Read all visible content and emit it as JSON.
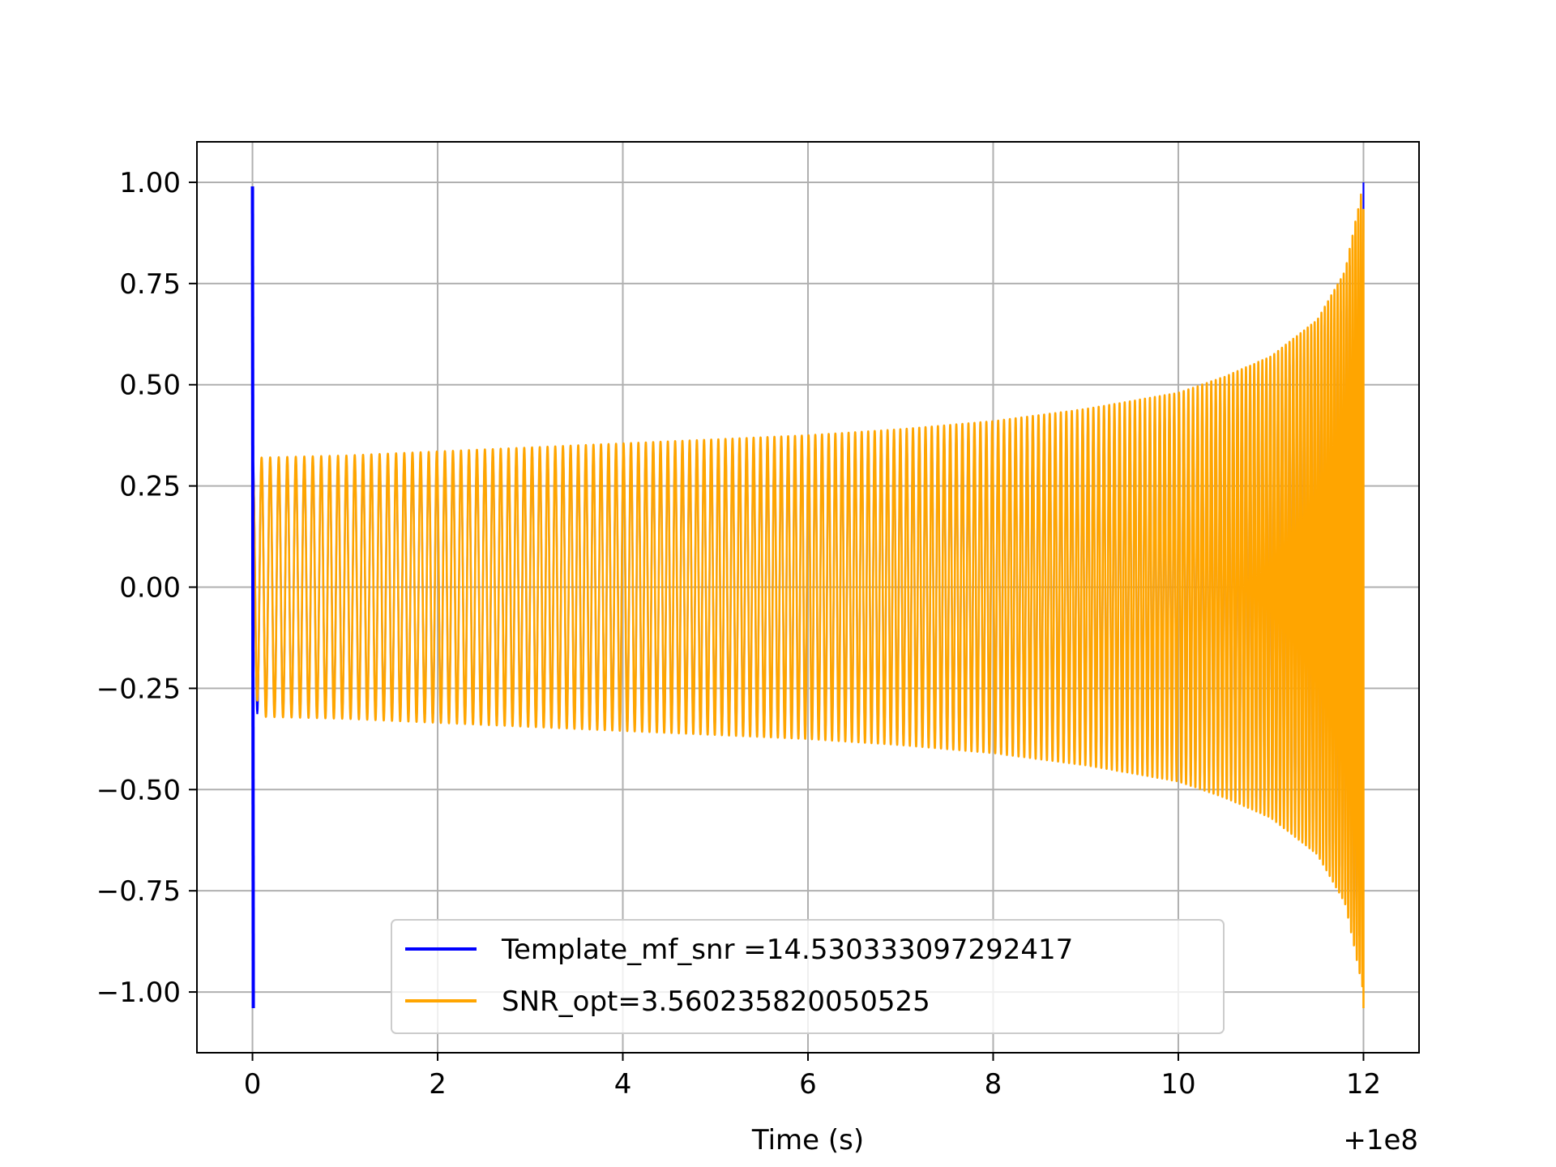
{
  "chart_data": {
    "type": "line",
    "title": "",
    "xlabel": "Time (s)",
    "ylabel": "",
    "x_offset_label": "+1e8",
    "xlim": [
      -0.6,
      12.6
    ],
    "ylim": [
      -1.15,
      1.1
    ],
    "grid": true,
    "legend_position": "lower center",
    "x_ticks": [
      0,
      2,
      4,
      6,
      8,
      10,
      12
    ],
    "x_tick_labels": [
      "0",
      "2",
      "4",
      "6",
      "8",
      "10",
      "12"
    ],
    "y_ticks": [
      1.0,
      0.75,
      0.5,
      0.25,
      0.0,
      -0.25,
      -0.5,
      -0.75,
      -1.0
    ],
    "y_tick_labels": [
      "1.00",
      "0.75",
      "0.50",
      "0.25",
      "0.00",
      "−0.25",
      "−0.50",
      "−0.75",
      "−1.00"
    ],
    "series": [
      {
        "name": "Template_mf_snr =14.530333097292417",
        "color": "#0000ff",
        "description": "chirp waveform; sharp spike to about 1.0 and -1.04 at t=0, then oscillation mostly hidden under the orange series",
        "spike": {
          "x": 0.0,
          "ymax": 0.99,
          "ymin": -1.04
        },
        "end_x": 12.0
      },
      {
        "name": "SNR_opt=3.560235820050525",
        "color": "#ffa500",
        "description": "chirp waveform; oscillation amplitude grows from about 0.3 at t=0 to 1.0 near t=12",
        "start_x": 0.0,
        "end_x": 12.0,
        "envelope": {
          "x": [
            0.1,
            1,
            2,
            3,
            4,
            5,
            6,
            7,
            8,
            9,
            10,
            10.5,
            11,
            11.5,
            11.8,
            12.0
          ],
          "amplitude": [
            0.32,
            0.325,
            0.335,
            0.345,
            0.355,
            0.365,
            0.375,
            0.39,
            0.41,
            0.44,
            0.48,
            0.52,
            0.57,
            0.66,
            0.78,
            1.0
          ]
        },
        "cycles": 185
      }
    ]
  }
}
